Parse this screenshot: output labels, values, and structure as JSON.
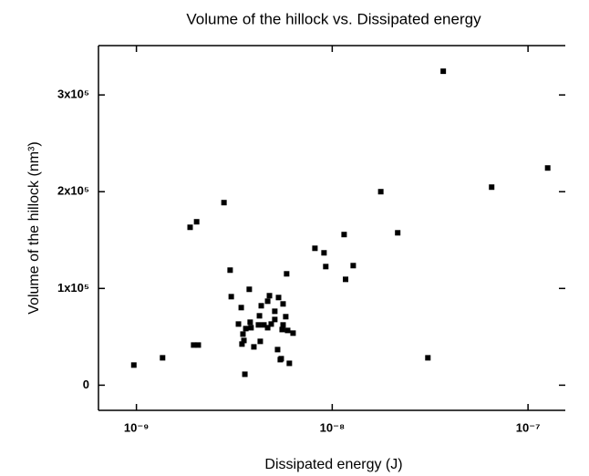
{
  "chart_data": {
    "type": "scatter",
    "title": "Volume of the hillock vs. Dissipated energy",
    "x_label": "Dissipated  energy (J)",
    "y_label": "Volume of the hillock (nm³)",
    "x_scale": "log",
    "color": "#000000",
    "xlim": [
      6.4e-10,
      1.55e-07
    ],
    "ylim": [
      -26000,
      351000
    ],
    "xticks": [
      {
        "value": 1e-09,
        "label": "10⁻⁹"
      },
      {
        "value": 1e-08,
        "label": "10⁻⁸"
      },
      {
        "value": 1e-07,
        "label": "10⁻⁷"
      }
    ],
    "yticks": [
      0,
      {
        "value": 100000,
        "label": "1x10⁵"
      },
      {
        "value": 200000,
        "label": "2x10⁵"
      },
      {
        "value": 300000,
        "label": "3x10⁵"
      }
    ],
    "x": [
      9.7e-10,
      1.36e-09,
      1.88e-09,
      2.03e-09,
      1.96e-09,
      2.07e-09,
      2.8e-09,
      3.01e-09,
      3.05e-09,
      3.43e-09,
      3.32e-09,
      3.46e-09,
      3.5e-09,
      3.54e-09,
      3.58e-09,
      3.62e-09,
      3.81e-09,
      3.85e-09,
      3.77e-09,
      3.98e-09,
      4.2e-09,
      4.25e-09,
      4.34e-09,
      4.29e-09,
      4.48e-09,
      4.68e-09,
      4.68e-09,
      4.78e-09,
      4.88e-09,
      5.09e-09,
      5.09e-09,
      5.26e-09,
      5.32e-09,
      5.49e-09,
      5.43e-09,
      5.55e-09,
      5.61e-09,
      5.61e-09,
      5.79e-09,
      5.85e-09,
      5.92e-09,
      6.04e-09,
      6.31e-09,
      8.16e-09,
      9.08e-09,
      9.27e-09,
      1.15e-08,
      1.17e-08,
      1.28e-08,
      1.77e-08,
      2.16e-08,
      3.08e-08,
      3.69e-08,
      6.52e-08,
      1.26e-07
    ],
    "values": [
      20800,
      28300,
      163200,
      168900,
      41500,
      41500,
      188700,
      118900,
      91500,
      80200,
      63200,
      42500,
      52800,
      46200,
      11300,
      58500,
      65100,
      59400,
      99100,
      39600,
      62300,
      71700,
      82100,
      45300,
      62300,
      59400,
      86800,
      92500,
      63200,
      67900,
      76400,
      36800,
      90600,
      27400,
      26400,
      57500,
      62300,
      84000,
      70800,
      115100,
      56600,
      22600,
      53800,
      141500,
      136800,
      122600,
      155700,
      109400,
      123600,
      200000,
      157500,
      28300,
      324500,
      204700,
      224500
    ]
  }
}
